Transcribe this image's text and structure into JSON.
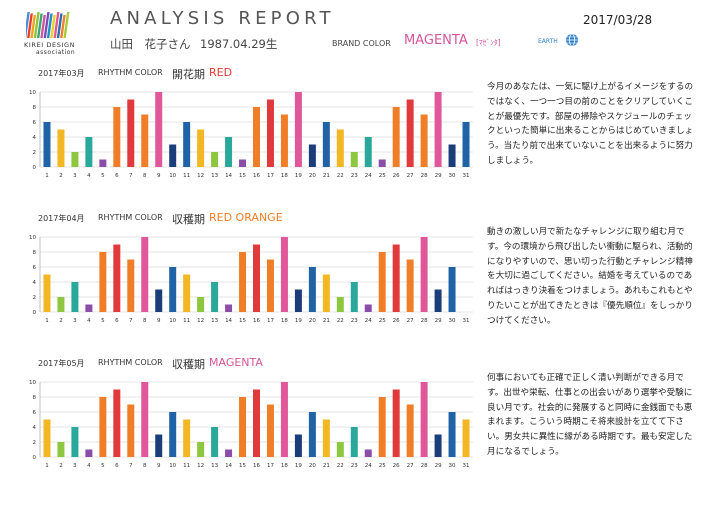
{
  "header": {
    "logo_line1": "KIREI DESIGN",
    "logo_line2": "association",
    "logo_colors": [
      "#4a8fd4",
      "#e6402f",
      "#f2a21b",
      "#8fc43a",
      "#3aa776",
      "#d4569a",
      "#7c4db8",
      "#1c8fc4",
      "#e9d02c",
      "#e05a8f",
      "#2c6fb0",
      "#f07e28",
      "#a8c93a"
    ],
    "title": "ANALYSIS REPORT",
    "date": "2017/03/28",
    "user_name": "山田　花子さん",
    "user_birth": "1987.04.29生",
    "brand_label": "BRAND COLOR",
    "brand_value": "MAGENTA",
    "brand_kana": "[ﾏｾﾞﾝﾀ]",
    "earth_label": "EARTH",
    "earth_icon": "globe-icon"
  },
  "palette": {
    "blue": "#1f63a6",
    "yellow": "#f2b722",
    "green": "#8dc63f",
    "teal": "#2aa89c",
    "purple": "#8a4ea8",
    "orange": "#f07e28",
    "red": "#e03a3c",
    "pink": "#e0589a",
    "navy": "#1b3e7a",
    "axis_grid": "#cccccc"
  },
  "sections": [
    {
      "month": "2017年03月",
      "rhythm_label": "RHYTHM COLOR",
      "phase": "開花期",
      "color_name": "RED",
      "color_hex": "#e53935",
      "description": "今月のあなたは、一気に駆け上がるイメージをするのではなく、一つ一つ目の前のことをクリアしていくことが最優先です。部屋の掃除やスケジュールのチェックといった簡単に出来ることからはじめていきましょう。当たり前で出来ていないことを出来るように努力しましょう。"
    },
    {
      "month": "2017年04月",
      "rhythm_label": "RHYTHM COLOR",
      "phase": "収穫期",
      "color_name": "RED ORANGE",
      "color_hex": "#f07e28",
      "description": "動きの激しい月で新たなチャレンジに取り組む月です。今の環境から飛び出したい衝動に駆られ、活動的になりやすいので、思い切った行動とチャレンジ精神を大切に過ごしてください。結婚を考えているのであればはっきり決着をつけましょう。あれもこれもとやりたいことが出てきたときは『優先順位』をしっかりつけてください。"
    },
    {
      "month": "2017年05月",
      "rhythm_label": "RHYTHM COLOR",
      "phase": "収穫期",
      "color_name": "MAGENTA",
      "color_hex": "#d4569a",
      "description": "何事においても正確で正しく清い判断ができる月です。出世や栄転、仕事との出会いがあり選挙や受験に良い月です。社会的に発展すると同時に金銭面でも恵まれます。こういう時期こそ将来設計を立てて下さい。男女共に異性に縁がある時期です。最も安定した月になるでしょう。"
    }
  ],
  "chart_data": [
    {
      "type": "bar",
      "ylim": [
        0,
        10
      ],
      "yticks": [
        0,
        2,
        4,
        6,
        8,
        10
      ],
      "categories": [
        1,
        2,
        3,
        4,
        5,
        6,
        7,
        8,
        9,
        10,
        11,
        12,
        13,
        14,
        15,
        16,
        17,
        18,
        19,
        20,
        21,
        22,
        23,
        24,
        25,
        26,
        27,
        28,
        29,
        30,
        31
      ],
      "values": [
        6,
        5,
        2,
        4,
        1,
        8,
        9,
        7,
        10,
        3,
        6,
        5,
        2,
        4,
        1,
        8,
        9,
        7,
        10,
        3,
        6,
        5,
        2,
        4,
        1,
        8,
        9,
        7,
        10,
        3,
        6
      ],
      "colors": [
        "blue",
        "yellow",
        "green",
        "teal",
        "purple",
        "orange",
        "red",
        "orange",
        "pink",
        "navy",
        "blue",
        "yellow",
        "green",
        "teal",
        "purple",
        "orange",
        "red",
        "orange",
        "pink",
        "navy",
        "blue",
        "yellow",
        "green",
        "teal",
        "purple",
        "orange",
        "red",
        "orange",
        "pink",
        "navy",
        "blue"
      ]
    },
    {
      "type": "bar",
      "ylim": [
        0,
        10
      ],
      "yticks": [
        0,
        2,
        4,
        6,
        8,
        10
      ],
      "categories": [
        1,
        2,
        3,
        4,
        5,
        6,
        7,
        8,
        9,
        10,
        11,
        12,
        13,
        14,
        15,
        16,
        17,
        18,
        19,
        20,
        21,
        22,
        23,
        24,
        25,
        26,
        27,
        28,
        29,
        30,
        31
      ],
      "values": [
        5,
        2,
        4,
        1,
        8,
        9,
        7,
        10,
        3,
        6,
        5,
        2,
        4,
        1,
        8,
        9,
        7,
        10,
        3,
        6,
        5,
        2,
        4,
        1,
        8,
        9,
        7,
        10,
        3,
        6,
        null
      ],
      "colors": [
        "yellow",
        "green",
        "teal",
        "purple",
        "orange",
        "red",
        "orange",
        "pink",
        "navy",
        "blue",
        "yellow",
        "green",
        "teal",
        "purple",
        "orange",
        "red",
        "orange",
        "pink",
        "navy",
        "blue",
        "yellow",
        "green",
        "teal",
        "purple",
        "orange",
        "red",
        "orange",
        "pink",
        "navy",
        "blue",
        null
      ]
    },
    {
      "type": "bar",
      "ylim": [
        0,
        10
      ],
      "yticks": [
        0,
        2,
        4,
        6,
        8,
        10
      ],
      "categories": [
        1,
        2,
        3,
        4,
        5,
        6,
        7,
        8,
        9,
        10,
        11,
        12,
        13,
        14,
        15,
        16,
        17,
        18,
        19,
        20,
        21,
        22,
        23,
        24,
        25,
        26,
        27,
        28,
        29,
        30,
        31
      ],
      "values": [
        5,
        2,
        4,
        1,
        8,
        9,
        7,
        10,
        3,
        6,
        5,
        2,
        4,
        1,
        8,
        9,
        7,
        10,
        3,
        6,
        5,
        2,
        4,
        1,
        8,
        9,
        7,
        10,
        3,
        6,
        5
      ],
      "colors": [
        "yellow",
        "green",
        "teal",
        "purple",
        "orange",
        "red",
        "orange",
        "pink",
        "navy",
        "blue",
        "yellow",
        "green",
        "teal",
        "purple",
        "orange",
        "red",
        "orange",
        "pink",
        "navy",
        "blue",
        "yellow",
        "green",
        "teal",
        "purple",
        "orange",
        "red",
        "orange",
        "pink",
        "navy",
        "blue",
        "yellow"
      ]
    }
  ]
}
